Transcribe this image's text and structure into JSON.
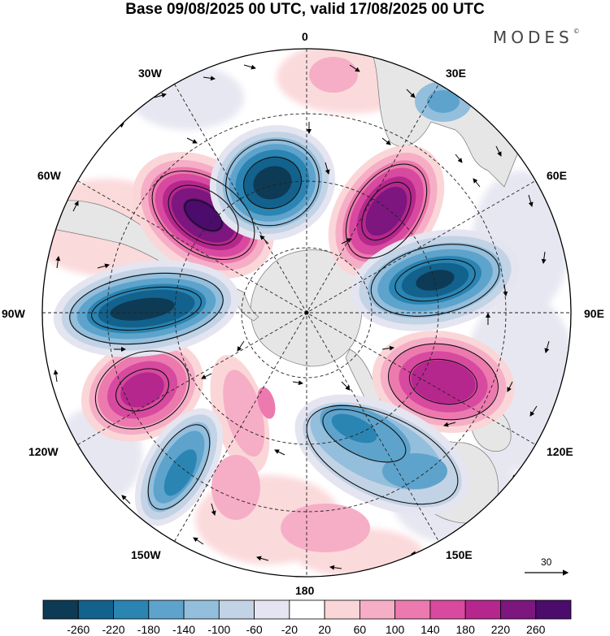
{
  "title": "Base 09/08/2025 00 UTC, valid 17/08/2025 00 UTC",
  "brand": "MODES",
  "brand_mark": "©",
  "longitude_labels": {
    "lon_0": "0",
    "lon_30e": "30E",
    "lon_60e": "60E",
    "lon_90e": "90E",
    "lon_120e": "120E",
    "lon_150e": "150E",
    "lon_180": "180",
    "lon_150w": "150W",
    "lon_120w": "120W",
    "lon_90w": "90W",
    "lon_60w": "60W",
    "lon_30w": "30W"
  },
  "vector_reference": {
    "label": "30"
  },
  "colorbar": {
    "labels": [
      "-260",
      "-220",
      "-180",
      "-140",
      "-100",
      "-60",
      "-20",
      "20",
      "60",
      "100",
      "140",
      "180",
      "220",
      "260"
    ],
    "colors": [
      "#0d3a55",
      "#12628d",
      "#2a85b3",
      "#5ea3cc",
      "#93bedc",
      "#c3d3e6",
      "#e4e5f0",
      "#ffffff",
      "#fbd6d8",
      "#f6aec6",
      "#ec7aae",
      "#d74a9f",
      "#b6278e",
      "#7d167f",
      "#4b0c6b"
    ]
  },
  "colors": {
    "land": "#e6e6e6",
    "background": "#ffffff"
  }
}
